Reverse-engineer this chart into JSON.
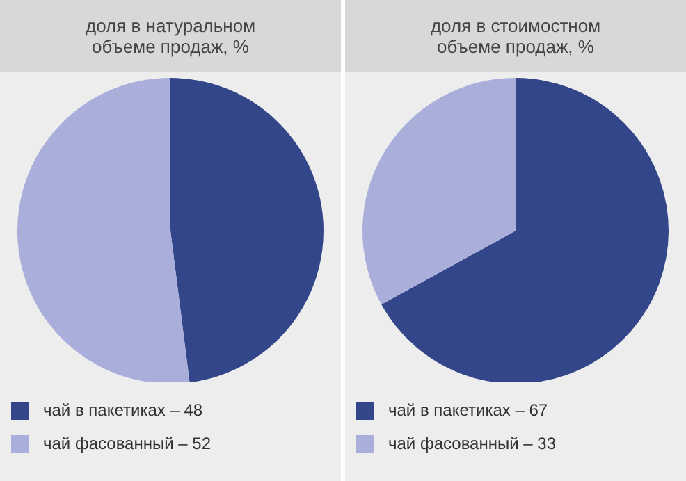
{
  "chart_data": [
    {
      "type": "pie",
      "title": "доля в натуральном объеме продаж, %",
      "categories": [
        "чай в пакетиках – 48",
        "чай фасованный – 52"
      ],
      "values": [
        48,
        52
      ],
      "colors": [
        "#34468a",
        "#aaaedb"
      ],
      "legend": "bottom"
    },
    {
      "type": "pie",
      "title": "доля в стоимостном объеме продаж, %",
      "categories": [
        "чай в пакетиках – 67",
        "чай фасованный – 33"
      ],
      "values": [
        67,
        33
      ],
      "colors": [
        "#34468a",
        "#aaaedb"
      ],
      "legend": "bottom"
    }
  ]
}
